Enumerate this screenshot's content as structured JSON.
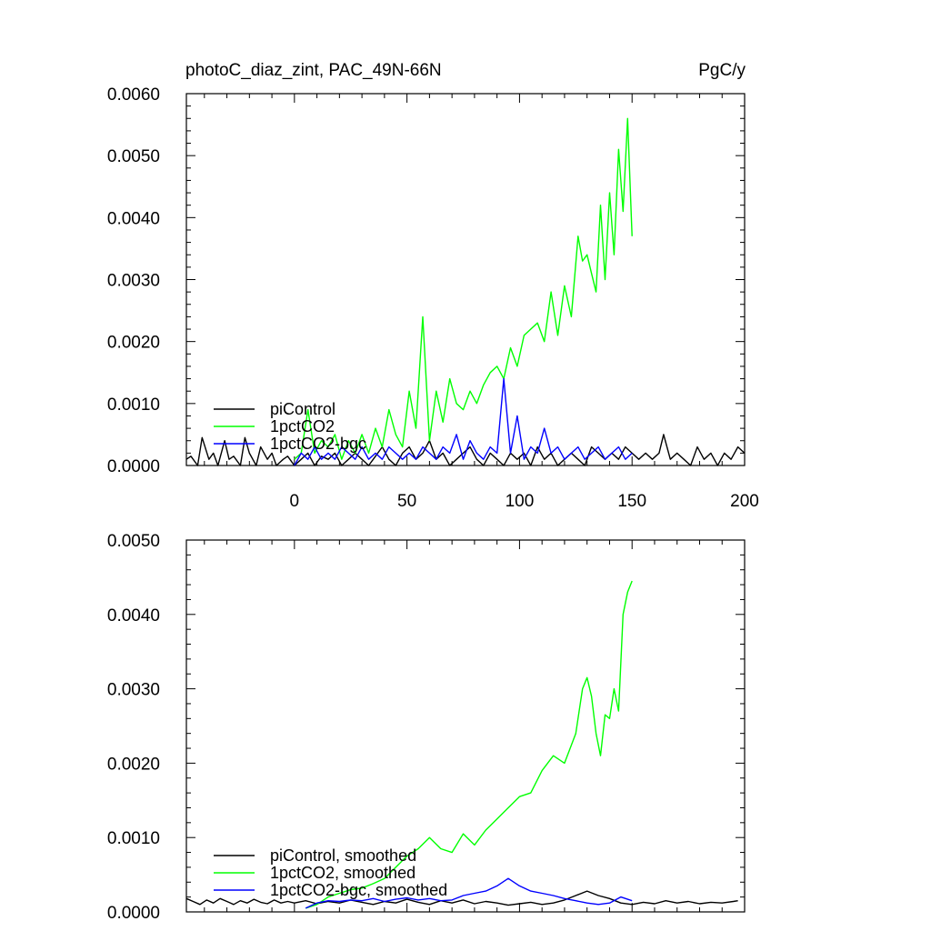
{
  "colors": {
    "piControl": "#000000",
    "onepct": "#00ff00",
    "bgc": "#0000ff"
  },
  "chart_data": [
    {
      "type": "line",
      "title": "photoC_diaz_zint, PAC_49N-66N",
      "units": "PgC/y",
      "xlim": [
        -48,
        200
      ],
      "ylim": [
        0,
        0.006
      ],
      "x_ticks": [
        "0",
        "50",
        "100",
        "150",
        "200"
      ],
      "y_ticks": [
        "0.0000",
        "0.0010",
        "0.0020",
        "0.0030",
        "0.0040",
        "0.0050",
        "0.0060"
      ],
      "legend_position": "bottom-left",
      "series": [
        {
          "name": "piControl",
          "color": "#000000",
          "x": [
            -48,
            -46,
            -43,
            -41,
            -38,
            -36,
            -34,
            -31,
            -29,
            -27,
            -24,
            -22,
            -20,
            -17,
            -15,
            -12,
            -10,
            -8,
            -5,
            -3,
            0,
            3,
            6,
            9,
            12,
            15,
            18,
            21,
            24,
            27,
            30,
            33,
            36,
            39,
            42,
            45,
            48,
            51,
            54,
            57,
            60,
            63,
            66,
            69,
            72,
            75,
            78,
            81,
            84,
            87,
            90,
            93,
            96,
            99,
            102,
            105,
            108,
            111,
            114,
            117,
            120,
            123,
            126,
            129,
            132,
            135,
            138,
            141,
            144,
            147,
            150,
            153,
            156,
            159,
            162,
            164,
            167,
            170,
            173,
            176,
            179,
            182,
            185,
            188,
            191,
            194,
            197,
            200
          ],
          "y": [
            0.0001,
            0.00015,
            0.0,
            0.00045,
            0.0001,
            0.0002,
            0.0,
            0.0004,
            0.0001,
            0.00015,
            0.0,
            0.00045,
            0.0002,
            0.0,
            0.0003,
            0.0001,
            0.0002,
            0.0,
            0.0001,
            0.00015,
            0.0,
            0.0001,
            0.0002,
            0.0,
            0.00015,
            0.0001,
            0.0002,
            0.0,
            0.0001,
            0.0002,
            0.0001,
            0.0,
            0.00015,
            0.0003,
            0.0001,
            0.0,
            0.0002,
            0.0003,
            0.0001,
            0.0002,
            0.0004,
            0.0001,
            0.0002,
            0.0,
            0.0001,
            0.0002,
            0.0003,
            0.0001,
            0.0,
            0.0002,
            0.0001,
            0.0,
            0.0002,
            0.0001,
            0.0002,
            0.0,
            0.0003,
            0.0001,
            0.0002,
            0.0,
            0.0001,
            0.0002,
            0.0001,
            0.0,
            0.0003,
            0.0002,
            0.0001,
            0.0002,
            0.0001,
            0.0003,
            0.0002,
            0.0001,
            0.0002,
            0.0001,
            0.0002,
            0.0005,
            0.0001,
            0.0002,
            0.0001,
            0.0,
            0.0003,
            0.0001,
            0.0002,
            0.0,
            0.0002,
            0.0001,
            0.0003,
            0.0002
          ]
        },
        {
          "name": "1pctCO2",
          "color": "#00ff00",
          "x": [
            0,
            3,
            6,
            9,
            12,
            15,
            18,
            21,
            24,
            27,
            30,
            33,
            36,
            39,
            42,
            45,
            48,
            51,
            54,
            57,
            60,
            63,
            66,
            69,
            72,
            75,
            78,
            81,
            84,
            87,
            90,
            93,
            96,
            99,
            102,
            105,
            108,
            111,
            114,
            117,
            120,
            123,
            126,
            128,
            130,
            132,
            134,
            136,
            138,
            140,
            142,
            144,
            146,
            148,
            150
          ],
          "y": [
            0.0001,
            0.0002,
            0.0009,
            0.0002,
            0.0004,
            0.0003,
            0.0005,
            0.0001,
            0.0004,
            0.0002,
            0.0005,
            0.0002,
            0.0006,
            0.0003,
            0.0009,
            0.0005,
            0.0003,
            0.0012,
            0.0006,
            0.0024,
            0.0004,
            0.0012,
            0.0007,
            0.0014,
            0.001,
            0.0009,
            0.0012,
            0.001,
            0.0013,
            0.0015,
            0.0016,
            0.0014,
            0.0019,
            0.0016,
            0.0021,
            0.0022,
            0.0023,
            0.002,
            0.0028,
            0.0021,
            0.0029,
            0.0024,
            0.0037,
            0.0033,
            0.0034,
            0.0031,
            0.0028,
            0.0042,
            0.003,
            0.0044,
            0.0034,
            0.0051,
            0.0041,
            0.0056,
            0.0037
          ]
        },
        {
          "name": "1pctCO2-bgc",
          "color": "#0000ff",
          "x": [
            0,
            3,
            6,
            9,
            12,
            15,
            18,
            21,
            24,
            27,
            30,
            33,
            36,
            39,
            42,
            45,
            48,
            51,
            54,
            57,
            60,
            63,
            66,
            69,
            72,
            75,
            78,
            81,
            84,
            87,
            90,
            93,
            96,
            99,
            102,
            105,
            108,
            111,
            114,
            117,
            120,
            123,
            126,
            129,
            132,
            135,
            138,
            141,
            144,
            147,
            150
          ],
          "y": [
            0.0,
            0.0002,
            0.0001,
            0.0003,
            0.0001,
            0.0002,
            0.0001,
            0.0003,
            0.0002,
            0.0001,
            0.0003,
            0.0001,
            0.0002,
            0.0001,
            0.0003,
            0.0002,
            0.0001,
            0.0002,
            0.0001,
            0.0003,
            0.0002,
            0.0001,
            0.0003,
            0.0002,
            0.0005,
            0.0001,
            0.0004,
            0.0002,
            0.0001,
            0.0003,
            0.0002,
            0.0014,
            0.0002,
            0.0008,
            0.0001,
            0.0003,
            0.0002,
            0.0006,
            0.0002,
            0.0003,
            0.0001,
            0.0002,
            0.0003,
            0.0001,
            0.0002,
            0.0003,
            0.0001,
            0.0002,
            0.0003,
            0.0001,
            0.0002
          ]
        }
      ]
    },
    {
      "type": "line",
      "title": "",
      "xlim": [
        -48,
        200
      ],
      "ylim": [
        0,
        0.005
      ],
      "x_ticks": [],
      "y_ticks": [
        "0.0000",
        "0.0010",
        "0.0020",
        "0.0030",
        "0.0040",
        "0.0050"
      ],
      "legend_position": "bottom-left",
      "series": [
        {
          "name": "piControl, smoothed",
          "color": "#000000",
          "x": [
            -48,
            -45,
            -42,
            -39,
            -36,
            -33,
            -30,
            -27,
            -24,
            -21,
            -18,
            -15,
            -12,
            -9,
            -6,
            -3,
            0,
            5,
            10,
            15,
            20,
            25,
            30,
            35,
            40,
            45,
            50,
            55,
            60,
            65,
            70,
            75,
            80,
            85,
            90,
            95,
            100,
            105,
            110,
            115,
            120,
            125,
            130,
            135,
            140,
            145,
            150,
            155,
            160,
            165,
            170,
            175,
            180,
            185,
            190,
            195,
            197
          ],
          "y": [
            0.00018,
            0.00014,
            0.0001,
            0.00016,
            0.00012,
            0.00018,
            0.00014,
            0.0001,
            0.00015,
            0.00012,
            0.00017,
            0.00013,
            0.00011,
            0.00016,
            0.00012,
            0.00014,
            0.00012,
            0.00015,
            0.00011,
            0.00014,
            0.00012,
            0.00016,
            0.00013,
            0.0001,
            0.00014,
            0.00012,
            0.00017,
            0.00013,
            0.0001,
            0.00015,
            0.00012,
            0.00016,
            0.00011,
            0.00014,
            0.00012,
            9e-05,
            0.00011,
            0.00013,
            0.0001,
            0.00012,
            0.00016,
            0.00022,
            0.00028,
            0.00022,
            0.00018,
            0.00012,
            0.0001,
            0.00013,
            0.00011,
            0.00015,
            0.00012,
            0.00014,
            0.00011,
            0.00013,
            0.00012,
            0.00014,
            0.00015
          ]
        },
        {
          "name": "1pctCO2, smoothed",
          "color": "#00ff00",
          "x": [
            5,
            10,
            15,
            20,
            25,
            30,
            35,
            40,
            45,
            50,
            55,
            60,
            65,
            70,
            75,
            80,
            85,
            90,
            95,
            100,
            105,
            110,
            115,
            120,
            125,
            128,
            130,
            132,
            134,
            136,
            138,
            140,
            142,
            144,
            146,
            148,
            150
          ],
          "y": [
            5e-05,
            0.0001,
            0.0002,
            0.00025,
            0.0003,
            0.00032,
            0.00038,
            0.00045,
            0.0006,
            0.00075,
            0.00085,
            0.001,
            0.00085,
            0.0008,
            0.00105,
            0.0009,
            0.0011,
            0.00125,
            0.0014,
            0.00155,
            0.0016,
            0.0019,
            0.0021,
            0.002,
            0.0024,
            0.003,
            0.00315,
            0.0029,
            0.0024,
            0.0021,
            0.00265,
            0.0026,
            0.003,
            0.0027,
            0.004,
            0.0043,
            0.00445
          ]
        },
        {
          "name": "1pctCO2-bgc, smoothed",
          "color": "#0000ff",
          "x": [
            5,
            10,
            15,
            20,
            25,
            30,
            35,
            40,
            45,
            50,
            55,
            60,
            65,
            70,
            75,
            80,
            85,
            90,
            95,
            100,
            105,
            110,
            115,
            120,
            125,
            130,
            135,
            140,
            145,
            150
          ],
          "y": [
            5e-05,
            0.00012,
            0.00015,
            0.00014,
            0.00016,
            0.00015,
            0.00018,
            0.00014,
            0.00017,
            0.00019,
            0.00016,
            0.00018,
            0.00015,
            0.00016,
            0.00022,
            0.00025,
            0.00028,
            0.00035,
            0.00045,
            0.00035,
            0.00028,
            0.00025,
            0.00022,
            0.00018,
            0.00015,
            0.00012,
            0.0001,
            0.00012,
            0.0002,
            0.00015
          ]
        }
      ]
    }
  ]
}
